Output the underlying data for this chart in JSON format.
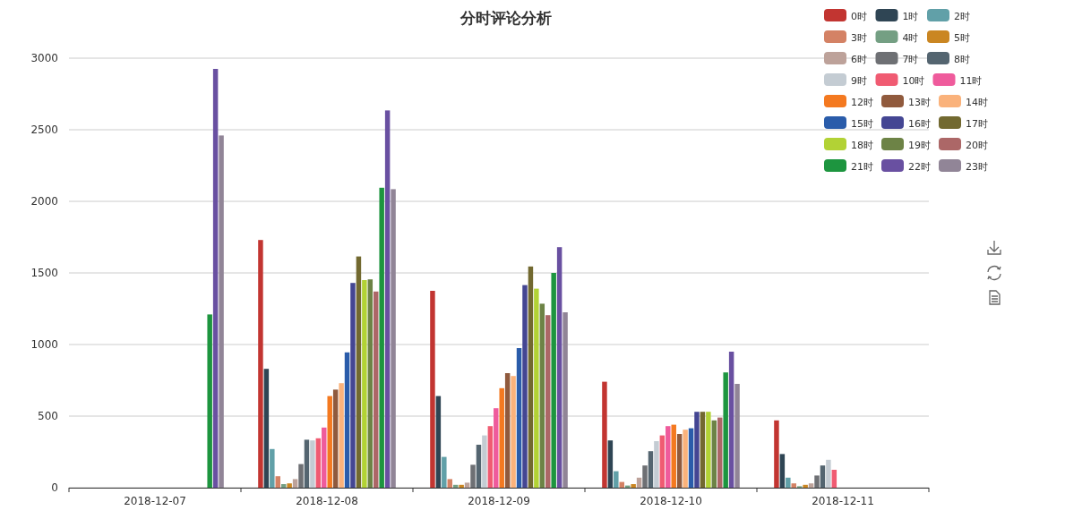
{
  "chart_data": {
    "type": "bar",
    "title": "分时评论分析",
    "categories": [
      "2018-12-07",
      "2018-12-08",
      "2018-12-09",
      "2018-12-10",
      "2018-12-11"
    ],
    "ylim": [
      0,
      3000
    ],
    "yticks": [
      0,
      500,
      1000,
      1500,
      2000,
      2500,
      3000
    ],
    "grid": "y",
    "legend": "top right",
    "series": [
      {
        "name": "0时",
        "color": "#c23531",
        "values": [
          null,
          1730,
          1375,
          740,
          470
        ]
      },
      {
        "name": "1时",
        "color": "#2f4554",
        "values": [
          null,
          830,
          640,
          330,
          235
        ]
      },
      {
        "name": "2时",
        "color": "#61a0a8",
        "values": [
          null,
          270,
          215,
          115,
          70
        ]
      },
      {
        "name": "3时",
        "color": "#d48265",
        "values": [
          null,
          80,
          60,
          40,
          30
        ]
      },
      {
        "name": "4时",
        "color": "#749f83",
        "values": [
          null,
          25,
          20,
          15,
          10
        ]
      },
      {
        "name": "5时",
        "color": "#ca8622",
        "values": [
          null,
          30,
          20,
          25,
          20
        ]
      },
      {
        "name": "6时",
        "color": "#bda29a",
        "values": [
          null,
          60,
          35,
          70,
          30
        ]
      },
      {
        "name": "7时",
        "color": "#6e7074",
        "values": [
          null,
          165,
          160,
          155,
          85
        ]
      },
      {
        "name": "8时",
        "color": "#546570",
        "values": [
          null,
          335,
          300,
          255,
          155
        ]
      },
      {
        "name": "9时",
        "color": "#c4ccd3",
        "values": [
          null,
          330,
          365,
          325,
          195
        ]
      },
      {
        "name": "10时",
        "color": "#f05b72",
        "values": [
          null,
          345,
          430,
          365,
          125
        ]
      },
      {
        "name": "11时",
        "color": "#ef5b9c",
        "values": [
          null,
          420,
          555,
          430,
          null
        ]
      },
      {
        "name": "12时",
        "color": "#f47920",
        "values": [
          null,
          640,
          695,
          440,
          null
        ]
      },
      {
        "name": "13时",
        "color": "#905a3d",
        "values": [
          null,
          685,
          800,
          375,
          null
        ]
      },
      {
        "name": "14时",
        "color": "#fab27b",
        "values": [
          null,
          730,
          780,
          405,
          null
        ]
      },
      {
        "name": "15时",
        "color": "#2a5caa",
        "values": [
          null,
          945,
          975,
          415,
          null
        ]
      },
      {
        "name": "16时",
        "color": "#444693",
        "values": [
          null,
          1430,
          1415,
          530,
          null
        ]
      },
      {
        "name": "17时",
        "color": "#726930",
        "values": [
          null,
          1615,
          1545,
          530,
          null
        ]
      },
      {
        "name": "18时",
        "color": "#b2d235",
        "values": [
          null,
          1450,
          1390,
          530,
          null
        ]
      },
      {
        "name": "19时",
        "color": "#6d8346",
        "values": [
          null,
          1455,
          1285,
          470,
          null
        ]
      },
      {
        "name": "20时",
        "color": "#ac6767",
        "values": [
          null,
          1370,
          1205,
          490,
          null
        ]
      },
      {
        "name": "21时",
        "color": "#1d953f",
        "values": [
          1210,
          2095,
          1500,
          805,
          null
        ]
      },
      {
        "name": "22时",
        "color": "#6950a1",
        "values": [
          2925,
          2635,
          1680,
          950,
          null
        ]
      },
      {
        "name": "23时",
        "color": "#918597",
        "values": [
          2460,
          2085,
          1225,
          725,
          null
        ]
      }
    ]
  }
}
